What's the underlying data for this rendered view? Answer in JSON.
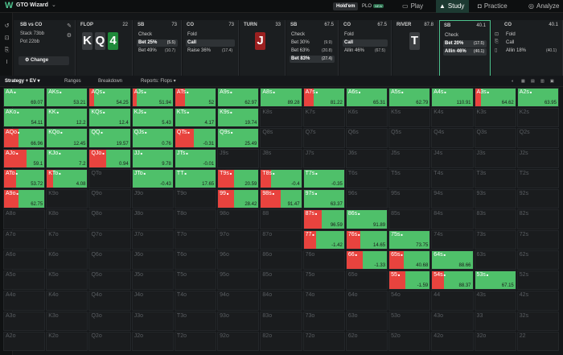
{
  "app": {
    "name": "GTO Wizard",
    "logo": "W"
  },
  "game_tabs": [
    {
      "label": "Hold'em"
    },
    {
      "label": "PLO",
      "badge": "NEW"
    }
  ],
  "nav": [
    {
      "label": "Play"
    },
    {
      "label": "Study"
    },
    {
      "label": "Practice"
    },
    {
      "label": "Analyze"
    }
  ],
  "spot": {
    "info": {
      "title": "SB vs CO",
      "stack": "Stack 73bb",
      "pot": "Pot 22bb",
      "change": "Change"
    },
    "flop": {
      "label": "FLOP",
      "num": "22",
      "cards": [
        {
          "r": "K",
          "c": "#3a3d40"
        },
        {
          "r": "Q",
          "c": "#3a3d40"
        },
        {
          "r": "4",
          "c": "#1f8a3a"
        }
      ]
    },
    "sb1": {
      "label": "SB",
      "num": "73",
      "actions": [
        {
          "t": "Check",
          "v": ""
        },
        {
          "t": "Bet 25%",
          "v": "(5.5)",
          "sel": true
        },
        {
          "t": "Bet 49%",
          "v": "(10.7)"
        }
      ]
    },
    "co1": {
      "label": "CO",
      "num": "73",
      "actions": [
        {
          "t": "Fold",
          "v": ""
        },
        {
          "t": "Call",
          "v": "",
          "sel": true
        },
        {
          "t": "Raise 36%",
          "v": "(17.4)"
        }
      ]
    },
    "turn": {
      "label": "TURN",
      "num": "33",
      "card": {
        "r": "J",
        "c": "#9b2020"
      }
    },
    "sb2": {
      "label": "SB",
      "num": "67.5",
      "actions": [
        {
          "t": "Check",
          "v": ""
        },
        {
          "t": "Bet 30%",
          "v": "(9.9)"
        },
        {
          "t": "Bet 63%",
          "v": "(20.8)"
        },
        {
          "t": "Bet 83%",
          "v": "(27.4)",
          "sel": true
        }
      ]
    },
    "co2": {
      "label": "CO",
      "num": "67.5",
      "actions": [
        {
          "t": "Fold",
          "v": ""
        },
        {
          "t": "Call",
          "v": "",
          "sel": true
        },
        {
          "t": "Allin 46%",
          "v": "(67.5)"
        }
      ]
    },
    "river": {
      "label": "RIVER",
      "num": "87.8",
      "card": {
        "r": "T",
        "c": "#3a3d40"
      }
    },
    "sb3": {
      "label": "SB",
      "num": "40.1",
      "actions": [
        {
          "t": "Check",
          "v": ""
        },
        {
          "t": "Bet 20%",
          "v": "(17.5)",
          "sel": true
        },
        {
          "t": "Allin 46%",
          "v": "(40.1)",
          "sel": true
        }
      ]
    },
    "co3": {
      "label": "CO",
      "num": "40.1",
      "actions": [
        {
          "t": "Fold",
          "v": ""
        },
        {
          "t": "Call",
          "v": ""
        },
        {
          "t": "Allin 18%",
          "v": "(40.1)"
        }
      ]
    }
  },
  "tabs": [
    {
      "label": "Strategy + EV"
    },
    {
      "label": "Ranges"
    },
    {
      "label": "Breakdown"
    },
    {
      "label": "Reports: Flops"
    }
  ],
  "colors": {
    "green": "#4fc06a",
    "red": "#e8433e",
    "empty": "#1a1c1e"
  },
  "ranks": [
    "A",
    "K",
    "Q",
    "J",
    "T",
    "9",
    "8",
    "7",
    "6",
    "5",
    "4",
    "3",
    "2"
  ],
  "cells": {
    "AA": {
      "ev": "69.07",
      "mix": [
        {
          "c": "g",
          "p": 1
        }
      ]
    },
    "AKs": {
      "ev": "53.21",
      "mix": [
        {
          "c": "g",
          "p": 1
        }
      ]
    },
    "AQs": {
      "ev": "54.25",
      "mix": [
        {
          "c": "r",
          "p": 0.12
        },
        {
          "c": "g",
          "p": 0.88
        }
      ]
    },
    "AJs": {
      "ev": "51.94",
      "mix": [
        {
          "c": "r",
          "p": 0.1
        },
        {
          "c": "g",
          "p": 0.9
        }
      ]
    },
    "ATs": {
      "ev": "52",
      "mix": [
        {
          "c": "r",
          "p": 0.25
        },
        {
          "c": "g",
          "p": 0.75
        }
      ]
    },
    "A9s": {
      "ev": "62.97",
      "mix": [
        {
          "c": "g",
          "p": 1
        }
      ]
    },
    "A8s": {
      "ev": "89.28",
      "mix": [
        {
          "c": "g",
          "p": 1
        }
      ]
    },
    "A7s": {
      "ev": "81.22",
      "mix": [
        {
          "c": "r",
          "p": 0.25
        },
        {
          "c": "g",
          "p": 0.75
        }
      ]
    },
    "A6s": {
      "ev": "65.31",
      "mix": [
        {
          "c": "g",
          "p": 1
        }
      ]
    },
    "A5s": {
      "ev": "62.79",
      "mix": [
        {
          "c": "g",
          "p": 1
        }
      ]
    },
    "A4s": {
      "ev": "110.91",
      "mix": [
        {
          "c": "g",
          "p": 1
        }
      ]
    },
    "A3s": {
      "ev": "64.62",
      "mix": [
        {
          "c": "r",
          "p": 0.15
        },
        {
          "c": "g",
          "p": 0.85
        }
      ]
    },
    "A2s": {
      "ev": "63.95",
      "mix": [
        {
          "c": "g",
          "p": 1
        }
      ]
    },
    "AKo": {
      "ev": "54.11",
      "mix": [
        {
          "c": "g",
          "p": 1
        }
      ]
    },
    "KK": {
      "ev": "12.2",
      "mix": [
        {
          "c": "g",
          "p": 1
        }
      ]
    },
    "KQs": {
      "ev": "12.4",
      "mix": [
        {
          "c": "g",
          "p": 1
        }
      ]
    },
    "KJs": {
      "ev": "5.43",
      "mix": [
        {
          "c": "g",
          "p": 1
        }
      ]
    },
    "KTs": {
      "ev": "4.17",
      "mix": [
        {
          "c": "g",
          "p": 1
        }
      ]
    },
    "K9s": {
      "ev": "19.74",
      "mix": [
        {
          "c": "g",
          "p": 1
        }
      ]
    },
    "AQo": {
      "ev": "66.96",
      "mix": [
        {
          "c": "r",
          "p": 0.35
        },
        {
          "c": "g",
          "p": 0.65
        }
      ]
    },
    "KQo": {
      "ev": "12.45",
      "mix": [
        {
          "c": "g",
          "p": 1
        }
      ]
    },
    "QQ": {
      "ev": "19.57",
      "mix": [
        {
          "c": "g",
          "p": 1
        }
      ]
    },
    "QJs": {
      "ev": "0.76",
      "mix": [
        {
          "c": "g",
          "p": 1
        }
      ]
    },
    "QTs": {
      "ev": "-0.31",
      "mix": [
        {
          "c": "r",
          "p": 0.45
        },
        {
          "c": "g",
          "p": 0.55
        }
      ]
    },
    "Q9s": {
      "ev": "25.49",
      "mix": [
        {
          "c": "g",
          "p": 1
        }
      ]
    },
    "AJo": {
      "ev": "59.1",
      "mix": [
        {
          "c": "r",
          "p": 0.55
        },
        {
          "c": "g",
          "p": 0.45
        }
      ]
    },
    "KJo": {
      "ev": "7.2",
      "mix": [
        {
          "c": "g",
          "p": 1
        }
      ]
    },
    "QJo": {
      "ev": "0.94",
      "mix": [
        {
          "c": "r",
          "p": 0.4
        },
        {
          "c": "g",
          "p": 0.6
        }
      ]
    },
    "JJ": {
      "ev": "9.78",
      "mix": [
        {
          "c": "g",
          "p": 1
        }
      ]
    },
    "JTs": {
      "ev": "-0.01",
      "mix": [
        {
          "c": "g",
          "p": 1
        }
      ]
    },
    "ATo": {
      "ev": "53.72",
      "mix": [
        {
          "c": "r",
          "p": 0.3
        },
        {
          "c": "g",
          "p": 0.7
        }
      ]
    },
    "KTo": {
      "ev": "4.08",
      "mix": [
        {
          "c": "r",
          "p": 0.15
        },
        {
          "c": "g",
          "p": 0.85
        }
      ]
    },
    "JTo": {
      "ev": "-0.43",
      "mix": [
        {
          "c": "g",
          "p": 1
        }
      ]
    },
    "TT": {
      "ev": "17.65",
      "mix": [
        {
          "c": "g",
          "p": 1
        }
      ]
    },
    "T9s": {
      "ev": "20.59",
      "mix": [
        {
          "c": "r",
          "p": 0.4
        },
        {
          "c": "g",
          "p": 0.6
        }
      ]
    },
    "T8s": {
      "ev": "-0.4",
      "mix": [
        {
          "c": "r",
          "p": 0.25
        },
        {
          "c": "g",
          "p": 0.75
        }
      ]
    },
    "T7s": {
      "ev": "-0.35",
      "mix": [
        {
          "c": "g",
          "p": 1
        }
      ]
    },
    "A9o": {
      "ev": "62.75",
      "mix": [
        {
          "c": "r",
          "p": 0.35
        },
        {
          "c": "g",
          "p": 0.65
        }
      ]
    },
    "99": {
      "ev": "28.42",
      "mix": [
        {
          "c": "r",
          "p": 0.4
        },
        {
          "c": "g",
          "p": 0.6
        }
      ]
    },
    "98s": {
      "ev": "91.47",
      "mix": [
        {
          "c": "r",
          "p": 0.5
        },
        {
          "c": "g",
          "p": 0.5
        }
      ]
    },
    "97s": {
      "ev": "63.37",
      "mix": [
        {
          "c": "g",
          "p": 1
        }
      ]
    },
    "87s": {
      "ev": "96.59",
      "mix": [
        {
          "c": "r",
          "p": 0.45
        },
        {
          "c": "g",
          "p": 0.55
        }
      ]
    },
    "86s": {
      "ev": "91.89",
      "mix": [
        {
          "c": "g",
          "p": 1
        }
      ]
    },
    "77": {
      "ev": "-1.42",
      "mix": [
        {
          "c": "r",
          "p": 0.3
        },
        {
          "c": "g",
          "p": 0.7
        }
      ]
    },
    "76s": {
      "ev": "14.65",
      "mix": [
        {
          "c": "r",
          "p": 0.35
        },
        {
          "c": "g",
          "p": 0.65
        }
      ]
    },
    "75s": {
      "ev": "73.75",
      "mix": [
        {
          "c": "g",
          "p": 1
        }
      ]
    },
    "66": {
      "ev": "-1.33",
      "mix": [
        {
          "c": "r",
          "p": 0.4
        },
        {
          "c": "g",
          "p": 0.6
        }
      ]
    },
    "65s": {
      "ev": "40.68",
      "mix": [
        {
          "c": "r",
          "p": 0.35
        },
        {
          "c": "g",
          "p": 0.65
        }
      ]
    },
    "64s": {
      "ev": "88.66",
      "mix": [
        {
          "c": "g",
          "p": 1
        }
      ]
    },
    "55": {
      "ev": "-1.59",
      "mix": [
        {
          "c": "r",
          "p": 0.4
        },
        {
          "c": "g",
          "p": 0.6
        }
      ]
    },
    "54s": {
      "ev": "88.37",
      "mix": [
        {
          "c": "r",
          "p": 0.3
        },
        {
          "c": "g",
          "p": 0.7
        }
      ]
    },
    "53s": {
      "ev": "67.15",
      "mix": [
        {
          "c": "g",
          "p": 1
        }
      ]
    }
  }
}
